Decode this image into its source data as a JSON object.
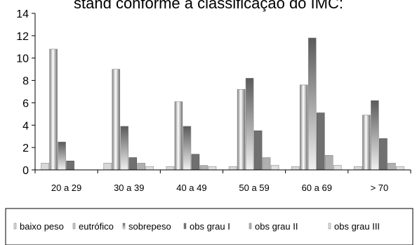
{
  "chart_data": {
    "type": "bar",
    "title": "stand conforme a classificação do IMC:",
    "categories": [
      "20 a 29",
      "30 a 39",
      "40 a 49",
      "50 a 59",
      "60 a 69",
      "> 70"
    ],
    "ylim": [
      0,
      14
    ],
    "yticks": [
      0,
      2,
      4,
      6,
      8,
      10,
      12,
      14
    ],
    "legend_position": "bottom",
    "series": [
      {
        "name": "baixo peso",
        "values": [
          0.6,
          0.6,
          0.3,
          0.3,
          0.3,
          0.3
        ],
        "color": "#d8d8d8"
      },
      {
        "name": "eutrófico",
        "values": [
          10.8,
          9.0,
          6.1,
          7.2,
          7.6,
          4.9
        ],
        "color": "#c8c8c8"
      },
      {
        "name": "sobrepeso",
        "values": [
          2.5,
          3.9,
          3.9,
          8.2,
          11.8,
          6.2
        ],
        "color": "#9a9a9a"
      },
      {
        "name": "obs grau I",
        "values": [
          0.8,
          1.1,
          1.4,
          3.5,
          5.1,
          2.8
        ],
        "color": "#707070"
      },
      {
        "name": "obs grau II",
        "values": [
          0.0,
          0.6,
          0.4,
          1.1,
          1.3,
          0.6
        ],
        "color": "#b0b0b0"
      },
      {
        "name": "obs grau III",
        "values": [
          0.0,
          0.3,
          0.3,
          0.4,
          0.4,
          0.3
        ],
        "color": "#e0e0e0"
      }
    ]
  }
}
